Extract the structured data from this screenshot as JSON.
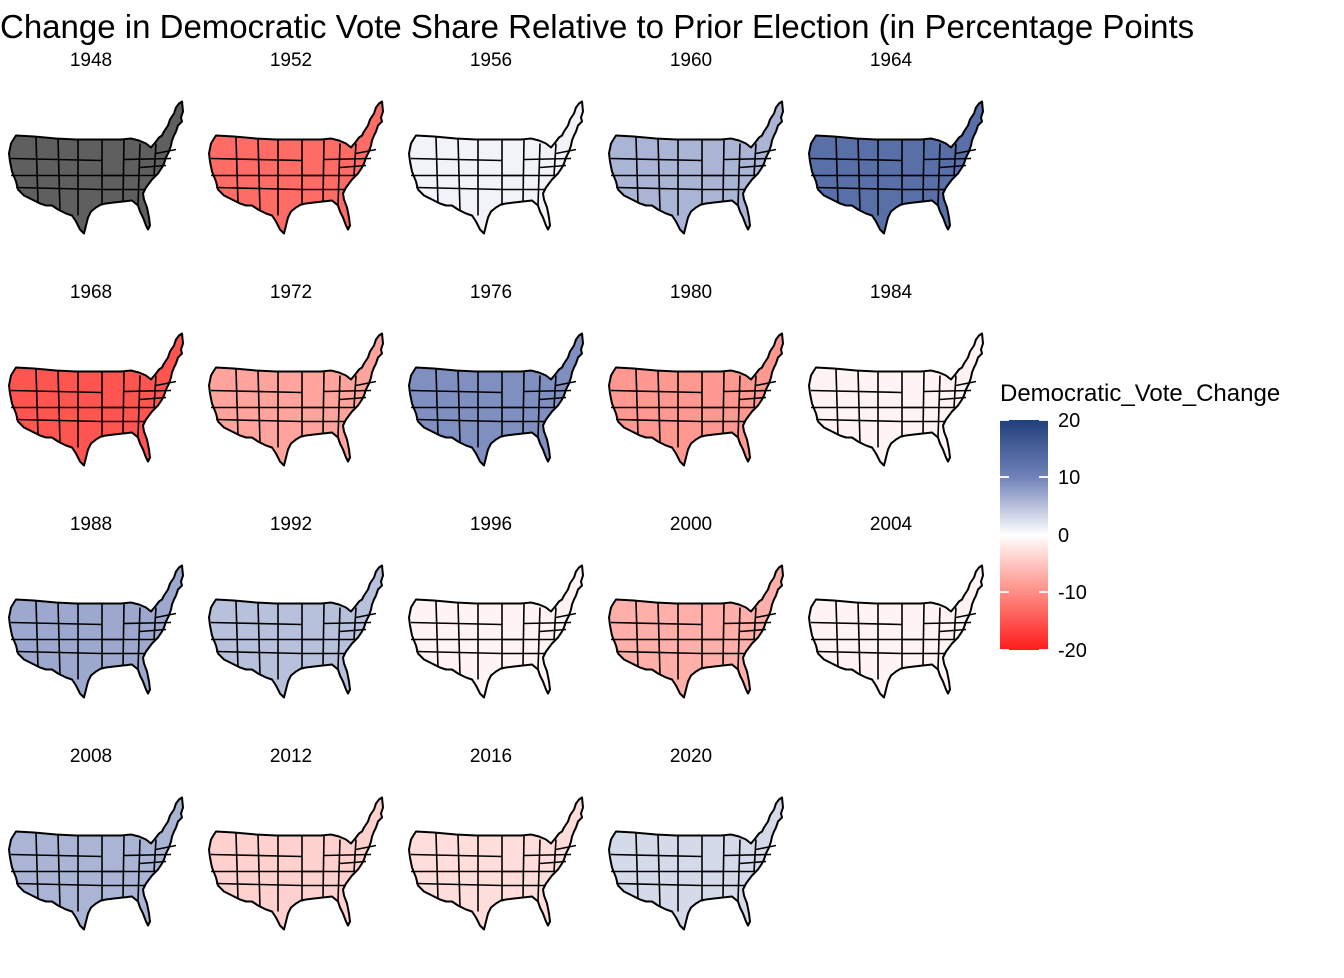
{
  "title": "Change in Democratic Vote Share Relative to Prior Election (in Percentage Points",
  "legend": {
    "title": "Democratic_Vote_Change",
    "ticks": [
      "20",
      "10",
      "0",
      "-10",
      "-20"
    ],
    "range": [
      -20,
      20
    ],
    "colors": {
      "high": "#203f7c",
      "mid": "#ffffff",
      "low": "#ff1c1c",
      "na": "#5f5f5f"
    }
  },
  "panels": [
    {
      "year": "1948",
      "overall": null
    },
    {
      "year": "1952",
      "overall": -13
    },
    {
      "year": "1956",
      "overall": 1
    },
    {
      "year": "1960",
      "overall": 6
    },
    {
      "year": "1964",
      "overall": 13
    },
    {
      "year": "1968",
      "overall": -15
    },
    {
      "year": "1972",
      "overall": -8
    },
    {
      "year": "1976",
      "overall": 9
    },
    {
      "year": "1980",
      "overall": -9
    },
    {
      "year": "1984",
      "overall": -1
    },
    {
      "year": "1988",
      "overall": 7
    },
    {
      "year": "1992",
      "overall": 5
    },
    {
      "year": "1996",
      "overall": -1
    },
    {
      "year": "2000",
      "overall": -7
    },
    {
      "year": "2004",
      "overall": -1
    },
    {
      "year": "2008",
      "overall": 6
    },
    {
      "year": "2012",
      "overall": -4
    },
    {
      "year": "2016",
      "overall": -3
    },
    {
      "year": "2020",
      "overall": 3
    }
  ]
}
